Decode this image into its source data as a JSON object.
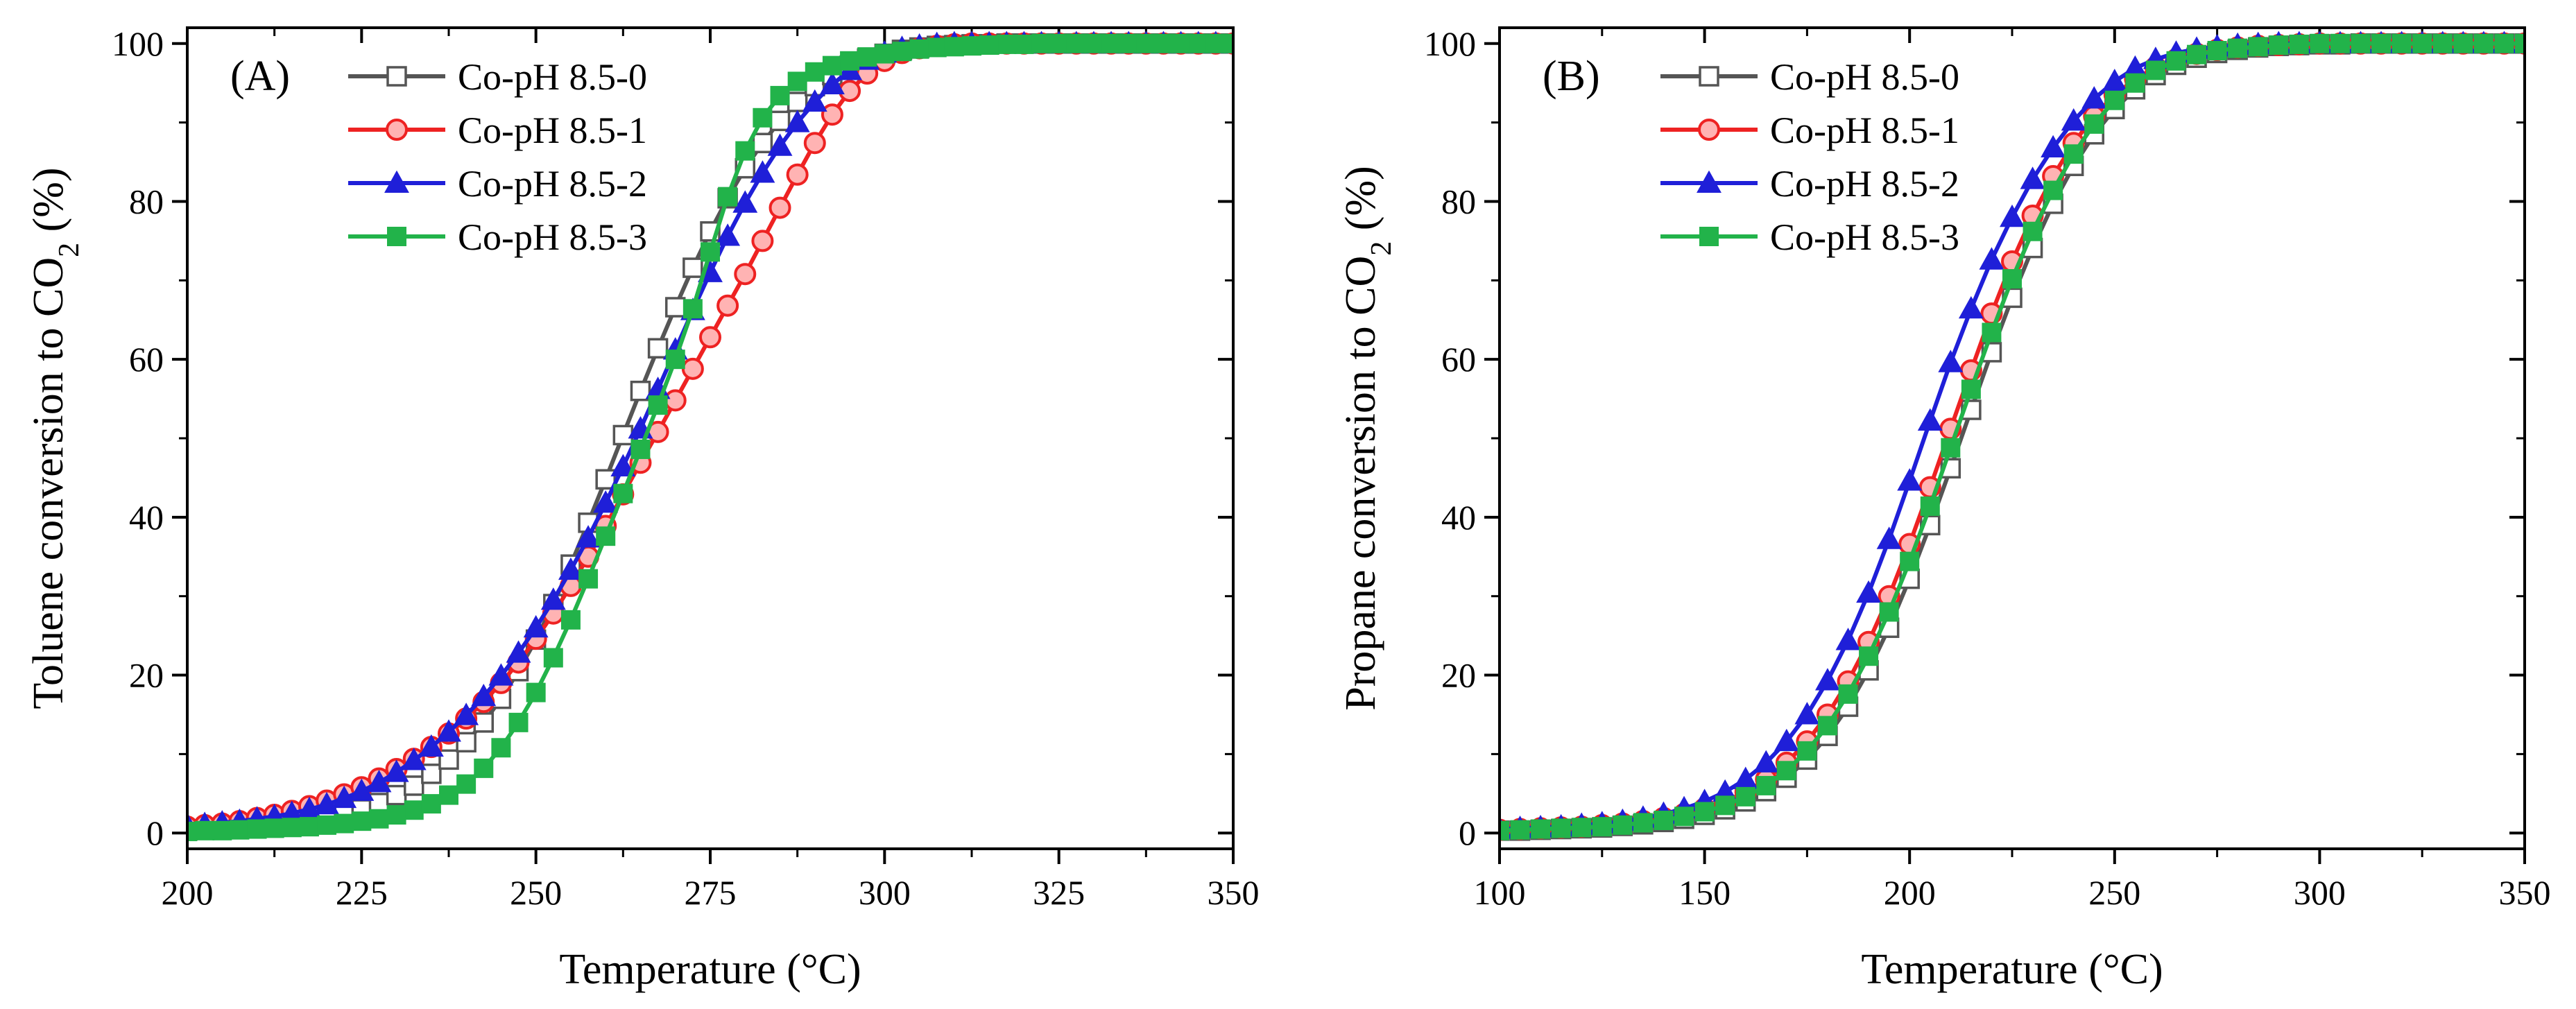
{
  "chart_data": [
    {
      "type": "line",
      "panel_label": "(A)",
      "xlabel": "Temperature (°C)",
      "ylabel_main": "Toluene conversion to CO",
      "ylabel_sub": "2",
      "ylabel_tail": " (%)",
      "xlim": [
        200,
        350
      ],
      "ylim": [
        -2,
        102
      ],
      "xticks": [
        200,
        225,
        250,
        275,
        300,
        325,
        350
      ],
      "yticks": [
        0,
        20,
        40,
        60,
        80,
        100
      ],
      "grid": false,
      "legend_position": "top-left",
      "series": [
        {
          "name": "Co-pH 8.5-0",
          "color": "#555555",
          "marker": "open-square",
          "x": [
            200,
            202.5,
            205,
            207.5,
            210,
            212.5,
            215,
            217.5,
            220,
            222.5,
            225,
            227.5,
            230,
            232.5,
            235,
            237.5,
            240,
            242.5,
            245,
            247.5,
            250,
            252.5,
            255,
            257.5,
            260,
            262.5,
            265,
            267.5,
            270,
            272.5,
            275,
            277.5,
            280,
            282.5,
            285,
            287.5,
            290,
            292.5,
            295,
            297.5,
            300,
            302.5,
            305,
            307.5,
            310,
            312.5,
            315,
            317.5,
            320,
            322.5,
            325,
            327.5,
            330,
            332.5,
            335,
            337.5,
            340,
            342.5,
            345,
            347.5,
            350
          ],
          "y": [
            0.3,
            0.4,
            0.5,
            0.6,
            0.8,
            1.0,
            1.2,
            1.5,
            1.9,
            2.4,
            3.0,
            3.8,
            4.8,
            6.0,
            7.5,
            9.3,
            11.5,
            14.0,
            17.0,
            20.5,
            24.5,
            29.0,
            34.0,
            39.3,
            44.8,
            50.4,
            56.0,
            61.4,
            66.6,
            71.6,
            76.2,
            80.4,
            84.2,
            87.4,
            90.2,
            92.6,
            94.6,
            96.0,
            97.2,
            98.1,
            98.7,
            99.2,
            99.5,
            99.7,
            99.8,
            99.9,
            99.9,
            100,
            100,
            100,
            100,
            100,
            100,
            100,
            100,
            100,
            100,
            100,
            100,
            100,
            100
          ]
        },
        {
          "name": "Co-pH 8.5-1",
          "color": "#ee2222",
          "marker": "circle",
          "x": [
            200,
            202.5,
            205,
            207.5,
            210,
            212.5,
            215,
            217.5,
            220,
            222.5,
            225,
            227.5,
            230,
            232.5,
            235,
            237.5,
            240,
            242.5,
            245,
            247.5,
            250,
            252.5,
            255,
            257.5,
            260,
            262.5,
            265,
            267.5,
            270,
            272.5,
            275,
            277.5,
            280,
            282.5,
            285,
            287.5,
            290,
            292.5,
            295,
            297.5,
            300,
            302.5,
            305,
            307.5,
            310,
            312.5,
            315,
            317.5,
            320,
            322.5,
            325,
            327.5,
            330,
            332.5,
            335,
            337.5,
            340,
            342.5,
            345,
            347.5,
            350
          ],
          "y": [
            0.8,
            1.0,
            1.2,
            1.5,
            1.9,
            2.3,
            2.8,
            3.4,
            4.1,
            4.9,
            5.8,
            6.9,
            8.1,
            9.4,
            10.9,
            12.6,
            14.5,
            16.6,
            19.0,
            21.6,
            24.6,
            27.8,
            31.3,
            35.0,
            38.9,
            42.9,
            46.9,
            50.8,
            54.8,
            58.8,
            62.8,
            66.8,
            70.8,
            75.0,
            79.2,
            83.4,
            87.4,
            91.0,
            94.0,
            96.2,
            97.8,
            98.8,
            99.4,
            99.7,
            99.9,
            100,
            100,
            100,
            100,
            100,
            100,
            100,
            100,
            100,
            100,
            100,
            100,
            100,
            100,
            100,
            100
          ]
        },
        {
          "name": "Co-pH 8.5-2",
          "color": "#1f1fd8",
          "marker": "triangle",
          "x": [
            200,
            202.5,
            205,
            207.5,
            210,
            212.5,
            215,
            217.5,
            220,
            222.5,
            225,
            227.5,
            230,
            232.5,
            235,
            237.5,
            240,
            242.5,
            245,
            247.5,
            250,
            252.5,
            255,
            257.5,
            260,
            262.5,
            265,
            267.5,
            270,
            272.5,
            275,
            277.5,
            280,
            282.5,
            285,
            287.5,
            290,
            292.5,
            295,
            297.5,
            300,
            302.5,
            305,
            307.5,
            310,
            312.5,
            315,
            317.5,
            320,
            322.5,
            325,
            327.5,
            330,
            332.5,
            335,
            337.5,
            340,
            342.5,
            345,
            347.5,
            350
          ],
          "y": [
            1.0,
            1.1,
            1.3,
            1.5,
            1.8,
            2.1,
            2.5,
            3.0,
            3.6,
            4.4,
            5.3,
            6.4,
            7.7,
            9.2,
            10.9,
            12.8,
            14.9,
            17.3,
            19.9,
            22.8,
            26.0,
            29.5,
            33.3,
            37.4,
            41.8,
            46.4,
            51.2,
            56.2,
            61.2,
            66.2,
            71.0,
            75.6,
            79.8,
            83.6,
            87.0,
            90.0,
            92.6,
            94.8,
            96.6,
            97.9,
            98.8,
            99.4,
            99.7,
            99.9,
            100,
            100,
            100,
            100,
            100,
            100,
            100,
            100,
            100,
            100,
            100,
            100,
            100,
            100,
            100,
            100,
            100
          ]
        },
        {
          "name": "Co-pH 8.5-3",
          "color": "#22b34a",
          "marker": "filled-square",
          "x": [
            200,
            202.5,
            205,
            207.5,
            210,
            212.5,
            215,
            217.5,
            220,
            222.5,
            225,
            227.5,
            230,
            232.5,
            235,
            237.5,
            240,
            242.5,
            245,
            247.5,
            250,
            252.5,
            255,
            257.5,
            260,
            262.5,
            265,
            267.5,
            270,
            272.5,
            275,
            277.5,
            280,
            282.5,
            285,
            287.5,
            290,
            292.5,
            295,
            297.5,
            300,
            302.5,
            305,
            307.5,
            310,
            312.5,
            315,
            317.5,
            320,
            322.5,
            325,
            327.5,
            330,
            332.5,
            335,
            337.5,
            340,
            342.5,
            345,
            347.5,
            350
          ],
          "y": [
            0.2,
            0.3,
            0.3,
            0.4,
            0.5,
            0.6,
            0.7,
            0.8,
            1.0,
            1.2,
            1.5,
            1.8,
            2.3,
            2.9,
            3.7,
            4.8,
            6.2,
            8.2,
            10.8,
            14.0,
            17.8,
            22.2,
            27.0,
            32.2,
            37.6,
            43.0,
            48.6,
            54.2,
            60.0,
            66.4,
            73.6,
            80.6,
            86.4,
            90.6,
            93.4,
            95.2,
            96.4,
            97.2,
            97.8,
            98.3,
            98.7,
            99.0,
            99.3,
            99.5,
            99.6,
            99.7,
            99.8,
            99.9,
            99.9,
            100,
            100,
            100,
            100,
            100,
            100,
            100,
            100,
            100,
            100,
            100,
            100
          ]
        }
      ]
    },
    {
      "type": "line",
      "panel_label": "(B)",
      "xlabel": "Temperature (°C)",
      "ylabel_main": "Propane conversion to CO",
      "ylabel_sub": "2",
      "ylabel_tail": " (%)",
      "xlim": [
        100,
        350
      ],
      "ylim": [
        -2,
        102
      ],
      "xticks": [
        100,
        150,
        200,
        250,
        300,
        350
      ],
      "yticks": [
        0,
        20,
        40,
        60,
        80,
        100
      ],
      "grid": false,
      "legend_position": "top-left",
      "series": [
        {
          "name": "Co-pH 8.5-0",
          "color": "#555555",
          "marker": "open-square",
          "x": [
            100,
            105,
            110,
            115,
            120,
            125,
            130,
            135,
            140,
            145,
            150,
            155,
            160,
            165,
            170,
            175,
            180,
            185,
            190,
            195,
            200,
            205,
            210,
            215,
            220,
            225,
            230,
            235,
            240,
            245,
            250,
            255,
            260,
            265,
            270,
            275,
            280,
            285,
            290,
            295,
            300,
            305,
            310,
            315,
            320,
            325,
            330,
            335,
            340,
            345,
            350
          ],
          "y": [
            0.3,
            0.3,
            0.4,
            0.5,
            0.6,
            0.7,
            0.9,
            1.1,
            1.4,
            1.8,
            2.3,
            3.0,
            4.0,
            5.3,
            7.0,
            9.3,
            12.3,
            16.0,
            20.6,
            26.0,
            32.2,
            39.0,
            46.2,
            53.6,
            60.9,
            67.8,
            74.1,
            79.7,
            84.5,
            88.5,
            91.7,
            94.2,
            96.0,
            97.3,
            98.2,
            98.8,
            99.2,
            99.5,
            99.7,
            99.8,
            99.9,
            99.9,
            100,
            100,
            100,
            100,
            100,
            100,
            100,
            100,
            100
          ]
        },
        {
          "name": "Co-pH 8.5-1",
          "color": "#ee2222",
          "marker": "circle",
          "x": [
            100,
            105,
            110,
            115,
            120,
            125,
            130,
            135,
            140,
            145,
            150,
            155,
            160,
            165,
            170,
            175,
            180,
            185,
            190,
            195,
            200,
            205,
            210,
            215,
            220,
            225,
            230,
            235,
            240,
            245,
            250,
            255,
            260,
            265,
            270,
            275,
            280,
            285,
            290,
            295,
            300,
            305,
            310,
            315,
            320,
            325,
            330,
            335,
            340,
            345,
            350
          ],
          "y": [
            0.4,
            0.5,
            0.6,
            0.7,
            0.8,
            1.0,
            1.2,
            1.5,
            1.9,
            2.4,
            3.1,
            4.0,
            5.2,
            6.8,
            8.9,
            11.6,
            15.0,
            19.2,
            24.2,
            30.0,
            36.6,
            43.8,
            51.2,
            58.6,
            65.8,
            72.4,
            78.2,
            83.2,
            87.4,
            90.8,
            93.5,
            95.5,
            97.0,
            98.0,
            98.7,
            99.2,
            99.5,
            99.7,
            99.8,
            99.9,
            100,
            100,
            100,
            100,
            100,
            100,
            100,
            100,
            100,
            100,
            100
          ]
        },
        {
          "name": "Co-pH 8.5-2",
          "color": "#1f1fd8",
          "marker": "triangle",
          "x": [
            100,
            105,
            110,
            115,
            120,
            125,
            130,
            135,
            140,
            145,
            150,
            155,
            160,
            165,
            170,
            175,
            180,
            185,
            190,
            195,
            200,
            205,
            210,
            215,
            220,
            225,
            230,
            235,
            240,
            245,
            250,
            255,
            260,
            265,
            270,
            275,
            280,
            285,
            290,
            295,
            300,
            305,
            310,
            315,
            320,
            325,
            330,
            335,
            340,
            345,
            350
          ],
          "y": [
            0.5,
            0.6,
            0.7,
            0.8,
            1.0,
            1.2,
            1.5,
            1.9,
            2.4,
            3.1,
            4.0,
            5.2,
            6.8,
            8.9,
            11.6,
            15.0,
            19.3,
            24.4,
            30.4,
            37.2,
            44.6,
            52.2,
            59.6,
            66.4,
            72.6,
            78.0,
            82.8,
            86.8,
            90.2,
            93.0,
            95.2,
            96.9,
            98.0,
            98.8,
            99.3,
            99.6,
            99.8,
            99.9,
            100,
            100,
            100,
            100,
            100,
            100,
            100,
            100,
            100,
            100,
            100,
            100,
            100
          ]
        },
        {
          "name": "Co-pH 8.5-3",
          "color": "#22b34a",
          "marker": "filled-square",
          "x": [
            100,
            105,
            110,
            115,
            120,
            125,
            130,
            135,
            140,
            145,
            150,
            155,
            160,
            165,
            170,
            175,
            180,
            185,
            190,
            195,
            200,
            205,
            210,
            215,
            220,
            225,
            230,
            235,
            240,
            245,
            250,
            255,
            260,
            265,
            270,
            275,
            280,
            285,
            290,
            295,
            300,
            305,
            310,
            315,
            320,
            325,
            330,
            335,
            340,
            345,
            350
          ],
          "y": [
            0.3,
            0.4,
            0.5,
            0.6,
            0.7,
            0.8,
            1.0,
            1.3,
            1.6,
            2.1,
            2.7,
            3.5,
            4.6,
            6.0,
            7.9,
            10.4,
            13.6,
            17.6,
            22.4,
            28.0,
            34.4,
            41.4,
            48.8,
            56.2,
            63.4,
            70.2,
            76.2,
            81.4,
            86.0,
            89.8,
            92.8,
            95.0,
            96.6,
            97.8,
            98.6,
            99.1,
            99.4,
            99.6,
            99.8,
            99.9,
            100,
            100,
            100,
            100,
            100,
            100,
            100,
            100,
            100,
            100,
            100
          ]
        }
      ]
    }
  ]
}
